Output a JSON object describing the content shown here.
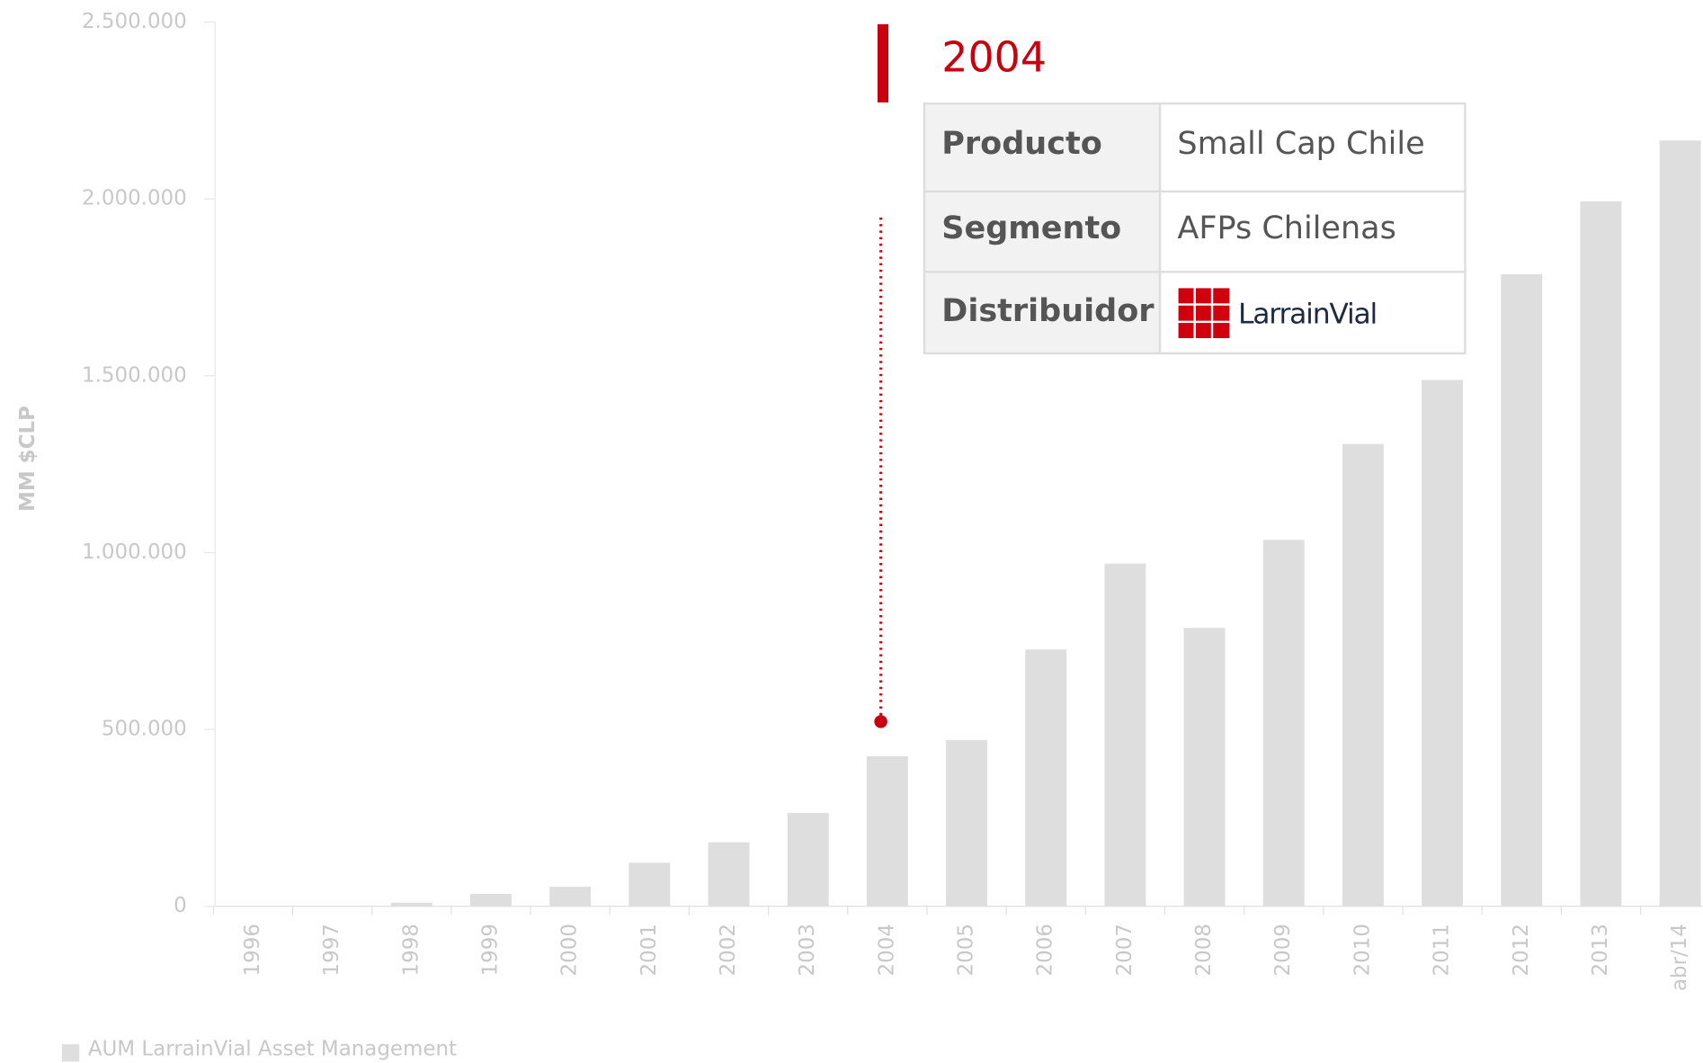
{
  "chart_data": {
    "type": "bar",
    "y_label": "MM $CLP",
    "categories": [
      "1996",
      "1997",
      "1998",
      "1999",
      "2000",
      "2001",
      "2002",
      "2003",
      "2004",
      "2005",
      "2006",
      "2007",
      "2008",
      "2009",
      "2010",
      "2011",
      "2012",
      "2013",
      "abr/14"
    ],
    "series": [
      {
        "name": "AUM LarrainVial Asset Management",
        "color": "#dedede",
        "values": [
          0,
          0,
          10000,
          35000,
          55000,
          123000,
          181000,
          264000,
          424000,
          470000,
          726000,
          969000,
          787000,
          1036000,
          1307000,
          1488000,
          1787000,
          1993000,
          2165000
        ]
      }
    ],
    "ylim": [
      0,
      2500000
    ],
    "yticks": [
      0,
      {
        "value": 500000,
        "label": "500.000"
      },
      {
        "value": 1000000,
        "label": "1.000.000"
      },
      {
        "value": 1500000,
        "label": "1.500.000"
      },
      {
        "value": 2000000,
        "label": "2.000.000"
      },
      {
        "value": 2500000,
        "label": "2.500.000"
      }
    ],
    "annotation": {
      "title": "2004",
      "rows": [
        [
          "Producto",
          "Small Cap Chile"
        ],
        [
          "Segmento",
          "AFPs Chilenas"
        ],
        [
          "Distribuidor",
          "LarrainVial"
        ]
      ]
    }
  }
}
